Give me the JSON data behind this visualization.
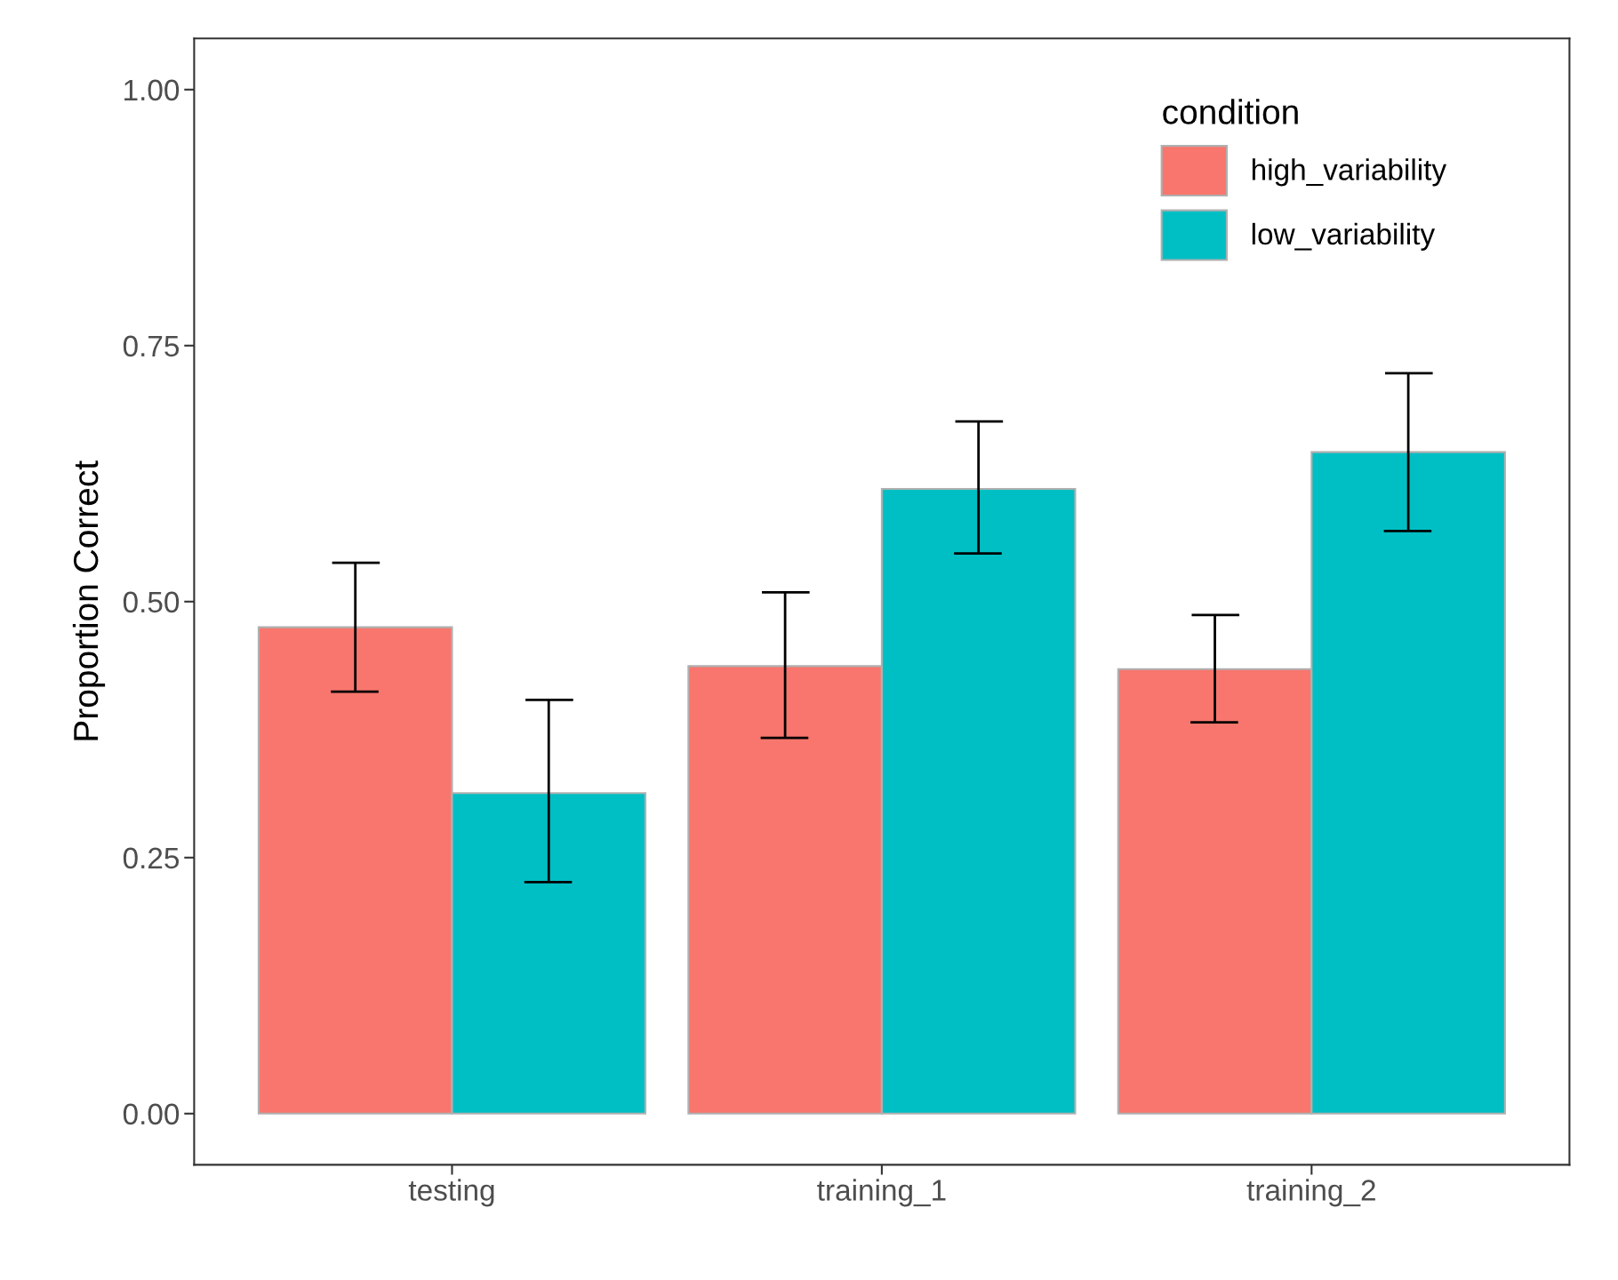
{
  "chart_data": {
    "type": "bar",
    "ylabel": "Proportion Correct",
    "legend_title": "condition",
    "legend": "top right",
    "categories": [
      "testing",
      "training_1",
      "training_2"
    ],
    "series": [
      {
        "name": "high_variability",
        "color": "#f8766d",
        "values": [
          0.475,
          0.437,
          0.434
        ],
        "errors": [
          [
            0.412,
            0.538
          ],
          [
            0.367,
            0.509
          ],
          [
            0.382,
            0.487
          ]
        ]
      },
      {
        "name": "low_variability",
        "color": "#00bfc4",
        "values": [
          0.313,
          0.61,
          0.646
        ],
        "errors": [
          [
            0.226,
            0.404
          ],
          [
            0.547,
            0.676
          ],
          [
            0.569,
            0.723
          ]
        ]
      }
    ],
    "ylim": [
      -0.05,
      1.05
    ],
    "yticks": [
      {
        "value": 0,
        "label": "0.00"
      },
      {
        "value": 0.25,
        "label": "0.25"
      },
      {
        "value": 0.5,
        "label": "0.50"
      },
      {
        "value": 0.75,
        "label": "0.75"
      },
      {
        "value": 1,
        "label": "1.00"
      }
    ]
  }
}
